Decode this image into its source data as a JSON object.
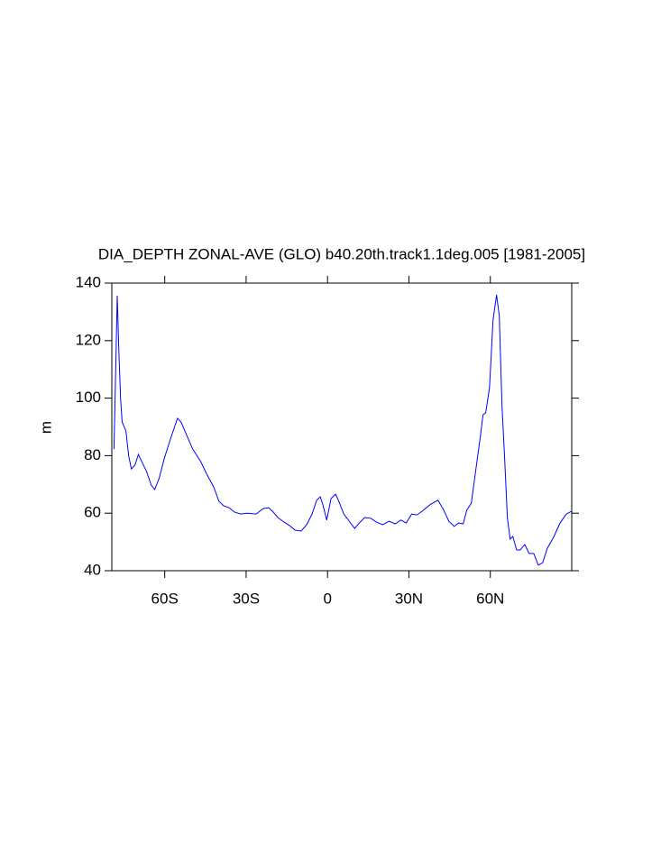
{
  "chart_data": {
    "type": "line",
    "title": "DIA_DEPTH ZONAL-AVE (GLO) b40.20th.track1.1deg.005 [1981-2005]",
    "y_label": "m",
    "xlim": [
      -79.5,
      90
    ],
    "ylim": [
      40,
      140
    ],
    "xticks": [
      {
        "value": -60,
        "label": "60S"
      },
      {
        "value": -30,
        "label": "30S"
      },
      0,
      {
        "value": 30,
        "label": "30N"
      },
      {
        "value": 60,
        "label": "60N"
      }
    ],
    "yticks": [
      40,
      60,
      80,
      100,
      120,
      140
    ],
    "x": [
      -78.7,
      -78,
      -77.5,
      -77,
      -76.3,
      -75.7,
      -74.3,
      -73.3,
      -72.3,
      -71,
      -69.7,
      -68.3,
      -66.7,
      -65,
      -63.7,
      -62,
      -60.3,
      -58,
      -55.3,
      -54,
      -52,
      -49.7,
      -46.7,
      -44.7,
      -42,
      -40,
      -38.3,
      -36.3,
      -34.3,
      -32,
      -29.7,
      -26.3,
      -23.7,
      -21.7,
      -20.3,
      -18.3,
      -16,
      -14,
      -12,
      -9.7,
      -7.7,
      -5.7,
      -4,
      -2.7,
      -1.7,
      -0.3,
      1.3,
      3,
      4.3,
      6,
      8,
      10,
      11.7,
      13.7,
      16,
      18,
      20.3,
      22.7,
      25,
      27,
      29,
      31,
      33,
      35.3,
      37.7,
      40.7,
      42.7,
      44.7,
      46.7,
      48.3,
      50,
      51.3,
      53,
      54.7,
      56.3,
      57.3,
      58.3,
      59.7,
      61,
      62.3,
      63.3,
      64.3,
      65.3,
      66.3,
      67.3,
      68.3,
      69.7,
      71,
      72.7,
      74.3,
      76,
      77.7,
      79.3,
      81,
      83.3,
      85.7,
      88,
      90
    ],
    "series": [
      {
        "color": "#0000ff",
        "values": [
          82.3,
          113,
          135.6,
          119,
          100.5,
          91.7,
          88.6,
          80,
          75.4,
          76.7,
          80.4,
          77.6,
          74.5,
          69.8,
          68.2,
          72.3,
          78.6,
          85.5,
          93,
          91.7,
          87.3,
          82.3,
          77.9,
          73.9,
          69.2,
          64.1,
          62.6,
          61.9,
          60.4,
          59.7,
          60,
          59.7,
          61.6,
          61.9,
          60.7,
          58.5,
          56.9,
          55.7,
          54.1,
          53.8,
          56,
          59.7,
          64.5,
          65.7,
          62.9,
          57.6,
          65.1,
          66.6,
          63.8,
          59.7,
          57.2,
          54.7,
          56.6,
          58.5,
          58.2,
          56.9,
          56,
          57.2,
          56.3,
          57.6,
          56.6,
          59.7,
          59.4,
          61,
          62.9,
          64.5,
          61.3,
          57.2,
          55.4,
          56.6,
          56.3,
          61,
          63.5,
          75.4,
          86.4,
          94.2,
          94.9,
          103.6,
          127.1,
          135.9,
          128.7,
          97.4,
          78.6,
          58.2,
          51,
          51.9,
          47.2,
          47.2,
          49.1,
          46,
          46,
          41.9,
          42.8,
          47.8,
          51.6,
          56.6,
          59.7,
          60.7
        ]
      }
    ]
  }
}
